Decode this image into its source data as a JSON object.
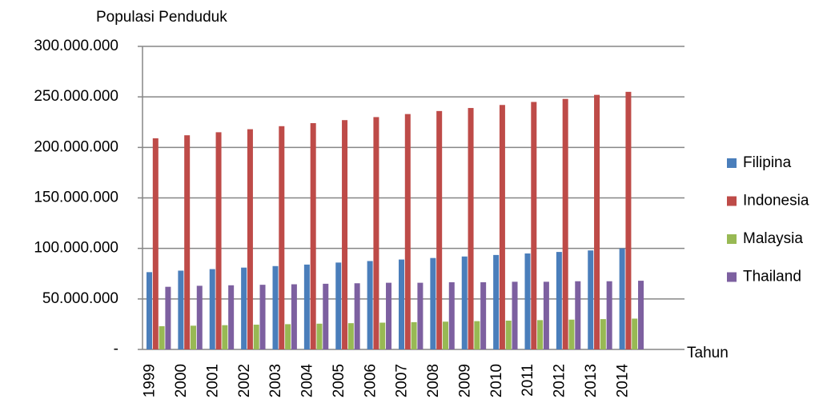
{
  "chart_data": {
    "type": "bar",
    "y_axis_label": "Populasi Penduduk",
    "x_axis_label": "Tahun",
    "categories": [
      "1999",
      "2000",
      "2001",
      "2002",
      "2003",
      "2004",
      "2005",
      "2006",
      "2007",
      "2008",
      "2009",
      "2010",
      "2011",
      "2012",
      "2013",
      "2014"
    ],
    "series": [
      {
        "name": "Filipina",
        "color": "#4a7ebb",
        "values": [
          76500000,
          78000000,
          79500000,
          81000000,
          82500000,
          84000000,
          86000000,
          87500000,
          89000000,
          90500000,
          92000000,
          93500000,
          95000000,
          96500000,
          98000000,
          100000000
        ]
      },
      {
        "name": "Indonesia",
        "color": "#be4b48",
        "values": [
          209000000,
          212000000,
          215000000,
          218000000,
          221000000,
          224000000,
          227000000,
          230000000,
          233000000,
          236000000,
          239000000,
          242000000,
          245000000,
          248000000,
          252000000,
          255000000
        ]
      },
      {
        "name": "Malaysia",
        "color": "#98b954",
        "values": [
          23000000,
          23500000,
          24000000,
          24500000,
          25000000,
          25500000,
          26000000,
          26500000,
          27000000,
          27500000,
          28000000,
          28500000,
          29000000,
          29500000,
          30000000,
          30500000
        ]
      },
      {
        "name": "Thailand",
        "color": "#7d60a0",
        "values": [
          62000000,
          63000000,
          63500000,
          64000000,
          64500000,
          65000000,
          65500000,
          66000000,
          66000000,
          66500000,
          66500000,
          67000000,
          67000000,
          67500000,
          67500000,
          68000000
        ]
      }
    ],
    "ylim": [
      0,
      300000000
    ],
    "yticks": [
      {
        "value": 0,
        "label": "-"
      },
      {
        "value": 50000000,
        "label": "50.000.000"
      },
      {
        "value": 100000000,
        "label": "100.000.000"
      },
      {
        "value": 150000000,
        "label": "150.000.000"
      },
      {
        "value": 200000000,
        "label": "200.000.000"
      },
      {
        "value": 250000000,
        "label": "250.000.000"
      },
      {
        "value": 300000000,
        "label": "300.000.000"
      }
    ],
    "grid": true,
    "legend": "right"
  }
}
